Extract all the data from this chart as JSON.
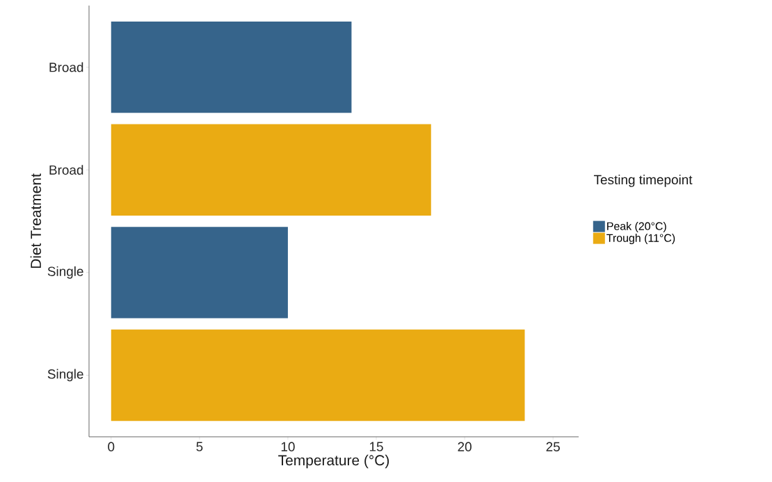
{
  "chart_data": {
    "type": "bar",
    "orientation": "horizontal",
    "xlabel": "Temperature (°C)",
    "ylabel": "Diet Treatment",
    "legend_title": "Testing timepoint",
    "categories": [
      "Broad",
      "Broad",
      "Single",
      "Single"
    ],
    "series": [
      {
        "name": "Peak (20°C)",
        "color": "#36648b",
        "values": [
          13.6,
          null,
          10.0,
          null
        ]
      },
      {
        "name": "Trough (11°C)",
        "color": "#eaab13",
        "values": [
          null,
          18.1,
          null,
          23.4
        ]
      }
    ],
    "xlim": [
      -1.25,
      26.45
    ],
    "xticks": [
      0,
      5,
      10,
      15,
      20,
      25
    ],
    "grid": false,
    "legend": "right"
  }
}
